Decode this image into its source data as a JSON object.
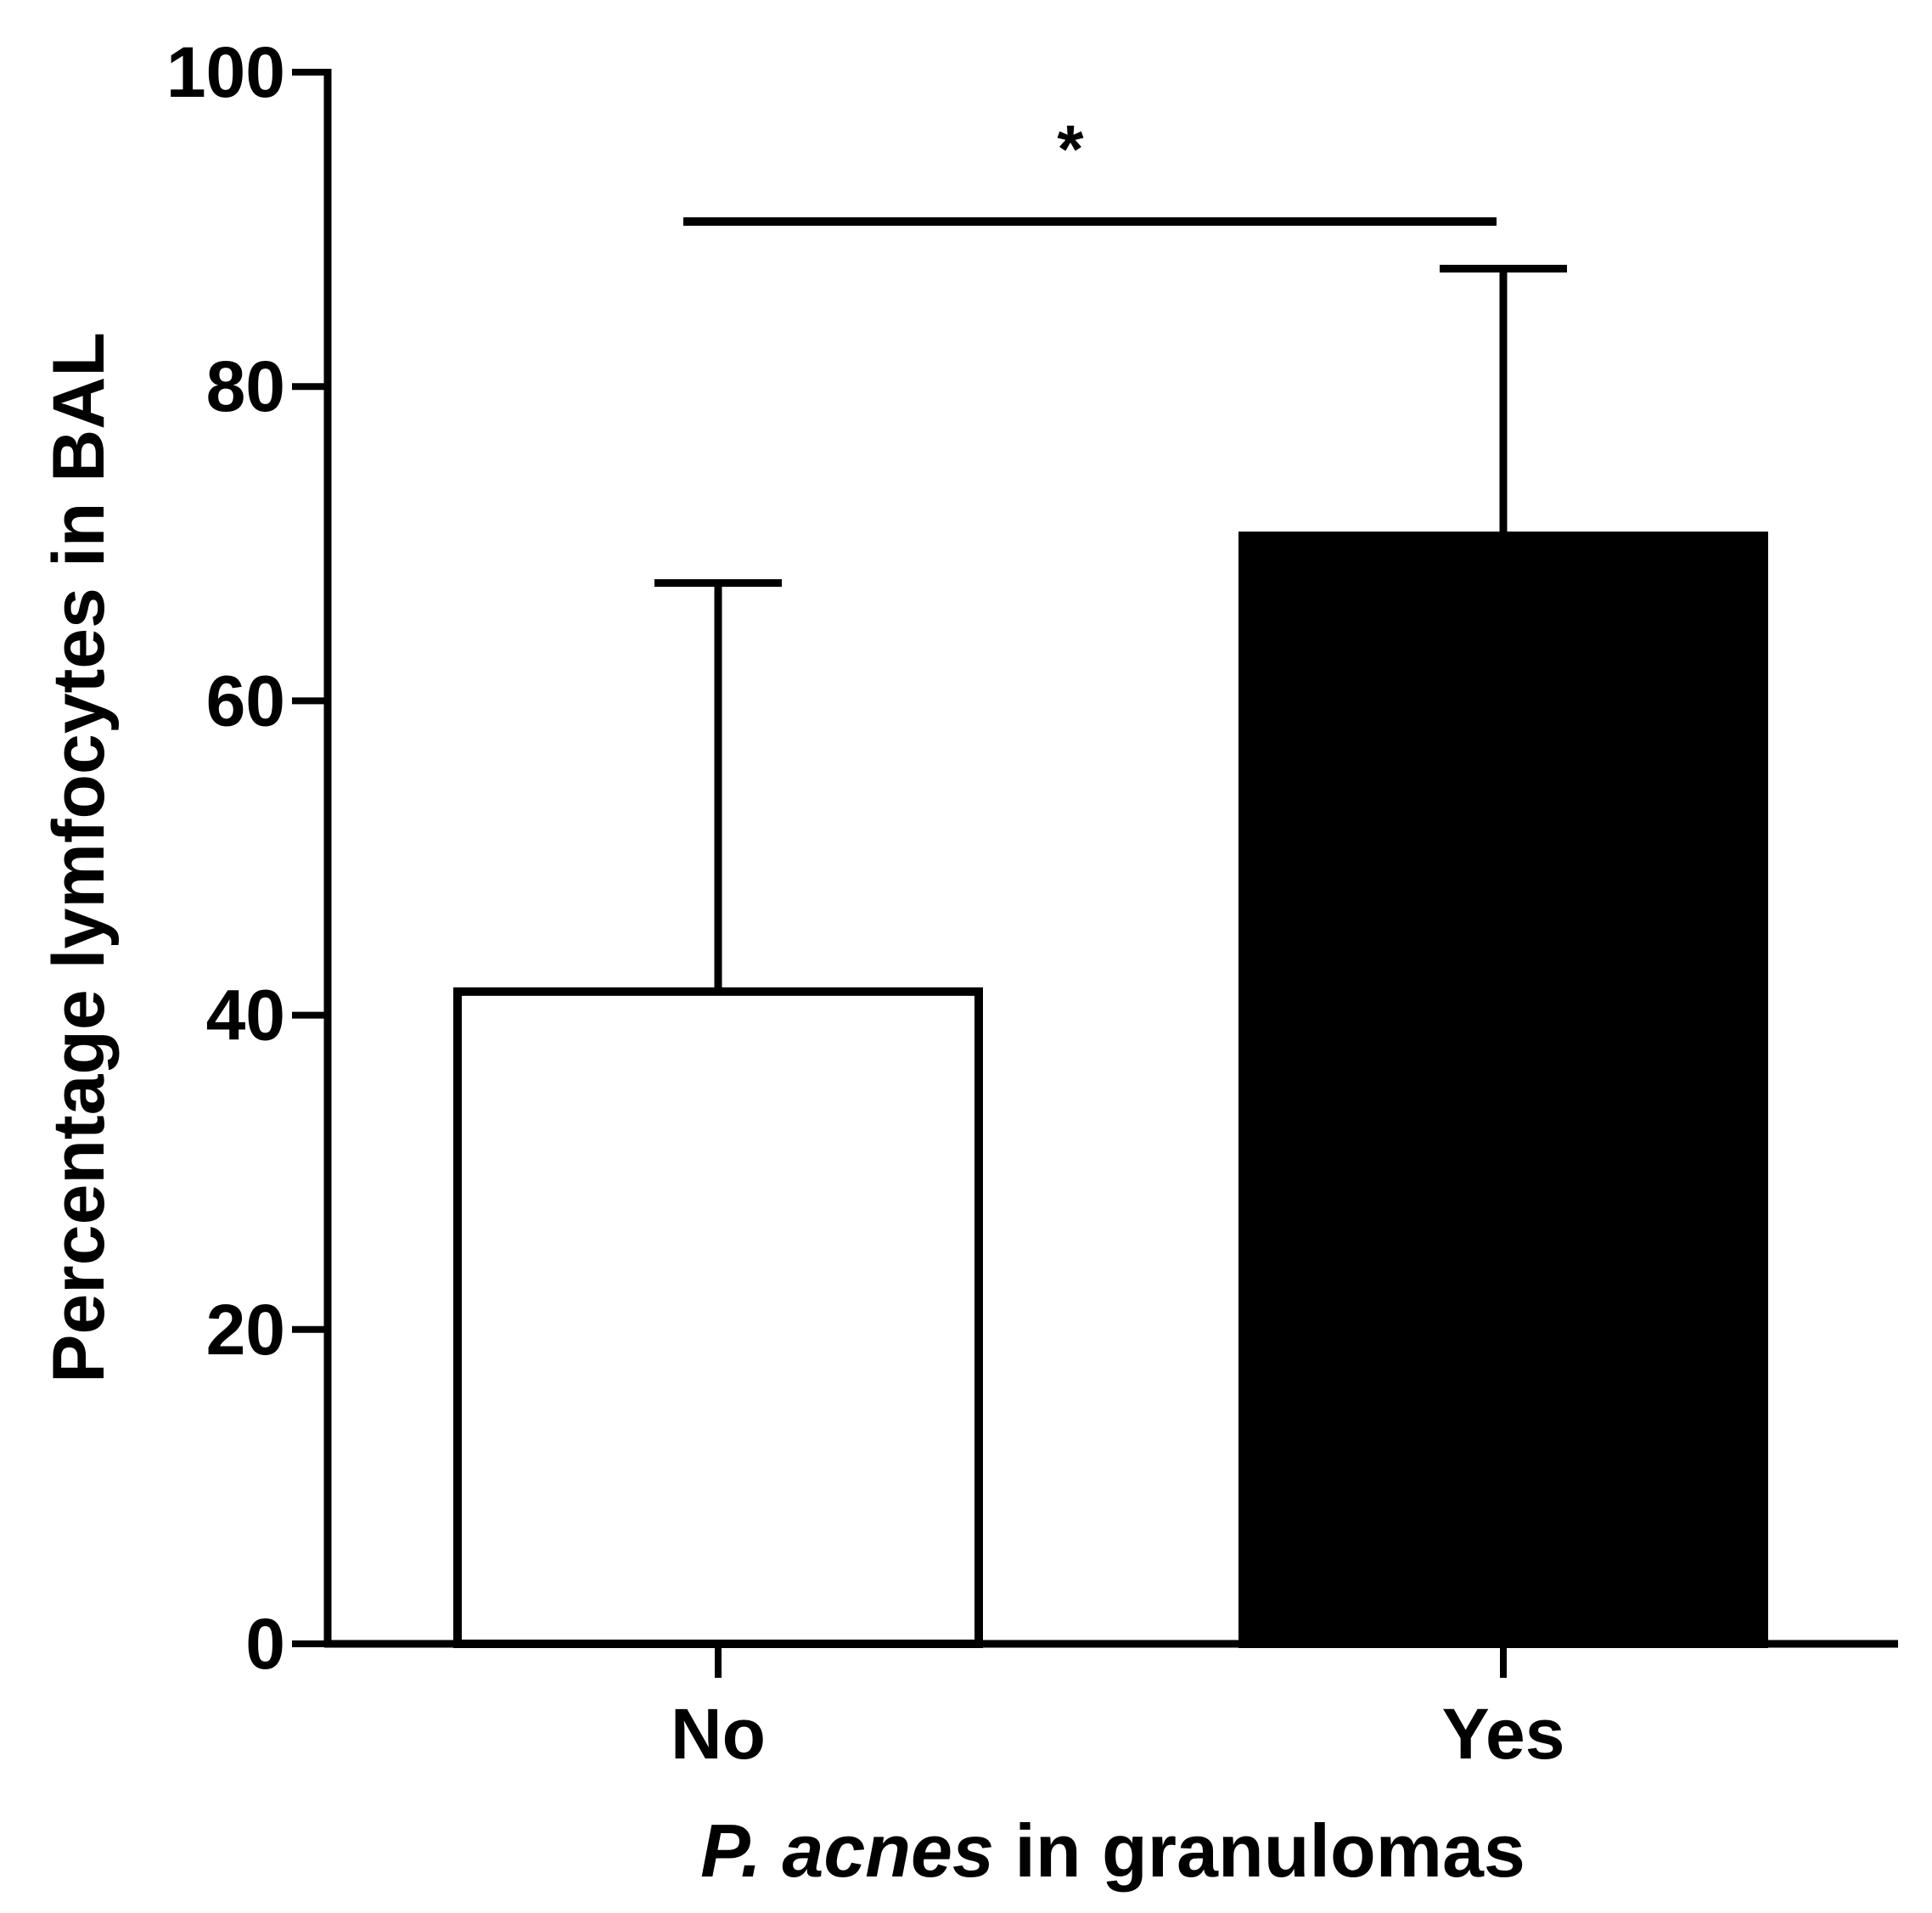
{
  "chart_data": {
    "type": "bar",
    "title": "",
    "xlabel_italic": "P. acnes",
    "xlabel_rest": " in granulomas",
    "ylabel": "Percentage lymfocytes in BAL",
    "categories": [
      "No",
      "Yes"
    ],
    "values": [
      41.5,
      70.5
    ],
    "error_upper": [
      67.5,
      87.5
    ],
    "bar_fill_colors": [
      "#ffffff",
      "#000000"
    ],
    "bar_edge_color": "#000000",
    "ylim": [
      0,
      100
    ],
    "yticks": [
      "0",
      "20",
      "40",
      "60",
      "80",
      "100"
    ],
    "significance": {
      "between": [
        "No",
        "Yes"
      ],
      "label": "*",
      "value": 90.5
    },
    "grid": false,
    "legend": "none"
  }
}
